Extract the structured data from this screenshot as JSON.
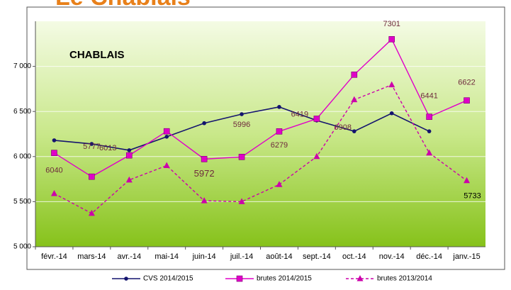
{
  "chart_data": {
    "type": "line",
    "title": "Le Chablais",
    "annotation": "CHABLAIS",
    "categories": [
      "févr.-14",
      "mars-14",
      "avr.-14",
      "mai-14",
      "juin-14",
      "juil.-14",
      "août-14",
      "sept.-14",
      "oct.-14",
      "nov.-14",
      "déc.-14",
      "janv.-15"
    ],
    "series": [
      {
        "name": "CVS 2014/2015",
        "color": "#14146e",
        "marker": "circle",
        "dash": false,
        "values": [
          6180,
          6140,
          6070,
          6220,
          6370,
          6470,
          6550,
          6400,
          6280,
          6480,
          6280,
          null
        ]
      },
      {
        "name": "brutes 2014/2015",
        "color": "#e000c8",
        "marker": "square",
        "dash": false,
        "values": [
          6040,
          5777,
          6013,
          6280,
          5972,
          5996,
          6279,
          6419,
          6908,
          7301,
          6441,
          6622
        ]
      },
      {
        "name": "brutes 2013/2014",
        "color": "#cc00aa",
        "marker": "triangle",
        "dash": true,
        "values": [
          5590,
          5370,
          5740,
          5900,
          5510,
          5500,
          5690,
          6000,
          6630,
          6795,
          6040,
          5733
        ]
      }
    ],
    "ylim": [
      5000,
      7500
    ],
    "yticks": [
      {
        "value": 5000,
        "label": "5 000"
      },
      {
        "value": 5500,
        "label": "5 500"
      },
      {
        "value": 6000,
        "label": "6 000"
      },
      {
        "value": 6500,
        "label": "6 500"
      },
      {
        "value": 7000,
        "label": "7 000"
      }
    ],
    "grid": true,
    "legend": "bottom"
  }
}
